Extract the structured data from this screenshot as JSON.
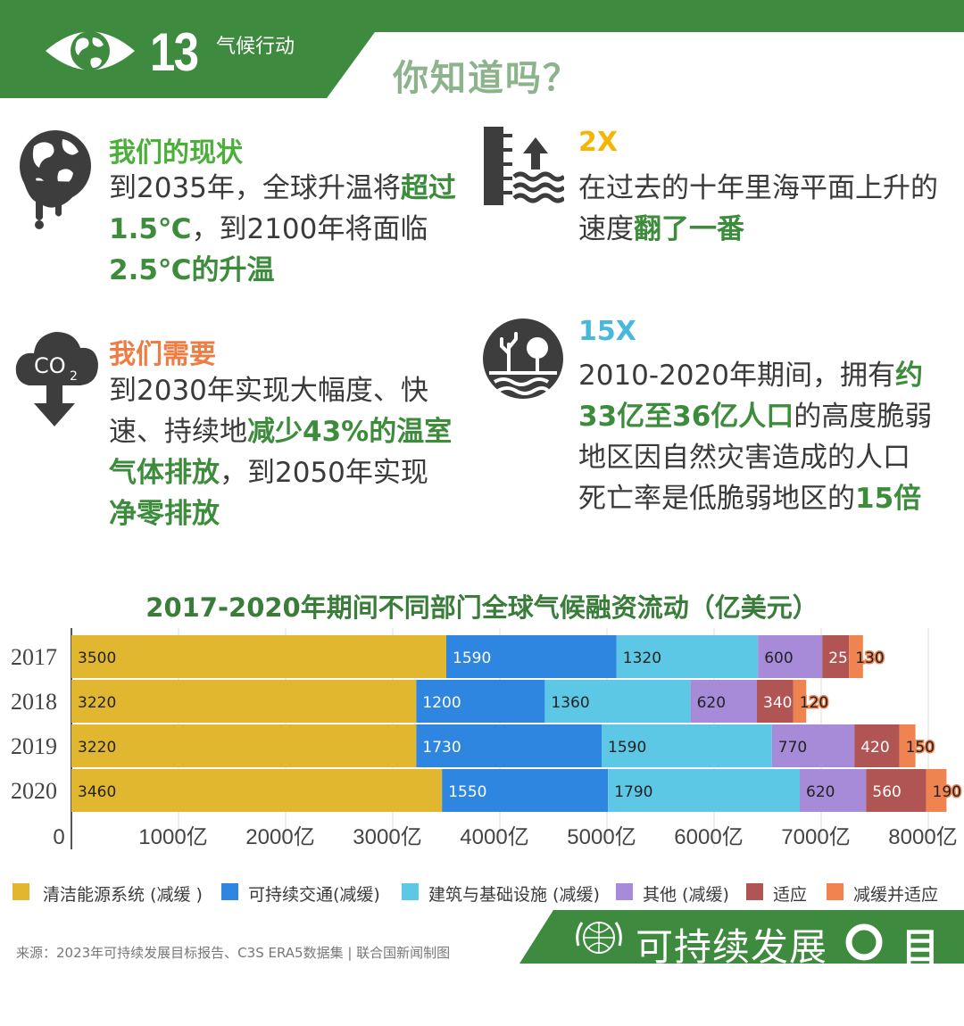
{
  "header": {
    "goal_number": "13",
    "goal_name": "气候行动",
    "question": "你知道吗？"
  },
  "facts": [
    {
      "heading": "我们的现状",
      "heading_color": "#4caf3a",
      "icon": "melting-globe-icon",
      "lines": [
        [
          {
            "t": "到2035年，全球升温将"
          },
          {
            "t": "超过",
            "h": 1
          }
        ],
        [
          {
            "t": "1.5℃",
            "h": 1
          },
          {
            "t": "，到2100年将面临"
          }
        ],
        [
          {
            "t": "2.5℃的升温",
            "h": 1
          }
        ]
      ]
    },
    {
      "heading": "2X",
      "heading_color": "#f2b705",
      "icon": "sea-level-rise-icon",
      "lines": [
        [
          {
            "t": "在过去的十年里海平面上升的"
          }
        ],
        [
          {
            "t": "速度"
          },
          {
            "t": "翻了一番",
            "h": 1
          }
        ]
      ]
    },
    {
      "heading": "我们需要",
      "heading_color": "#ee7d45",
      "icon": "co2-cloud-icon",
      "lines": [
        [
          {
            "t": "到2030年实现大幅度、快"
          }
        ],
        [
          {
            "t": "速、持续地"
          },
          {
            "t": "减少43%的温室",
            "h": 1
          }
        ],
        [
          {
            "t": "气体排放",
            "h": 1
          },
          {
            "t": "，到2050年实现"
          }
        ],
        [
          {
            "t": "净零排放",
            "h": 1
          }
        ]
      ]
    },
    {
      "heading": "15X",
      "heading_color": "#4ab8dc",
      "icon": "disaster-tree-icon",
      "lines": [
        [
          {
            "t": "2010-2020年期间，拥有"
          },
          {
            "t": "约",
            "h": 1
          }
        ],
        [
          {
            "t": "33亿至36亿人口",
            "h": 1
          },
          {
            "t": "的高度脆弱"
          }
        ],
        [
          {
            "t": "地区因自然灾害造成的人口"
          }
        ],
        [
          {
            "t": "死亡率是低脆弱地区的"
          },
          {
            "t": "15倍",
            "h": 1
          }
        ]
      ]
    }
  ],
  "chart_data": {
    "type": "bar",
    "orientation": "horizontal",
    "stacked": true,
    "title": "2017-2020年期间不同部门全球气候融资流动（亿美元）",
    "categories": [
      "2017",
      "2018",
      "2019",
      "2020"
    ],
    "series": [
      {
        "name": "清洁能源系统 (减缓 )",
        "color": "#e2b730",
        "label_color": "#222222",
        "values": [
          3500,
          3220,
          3220,
          3460
        ]
      },
      {
        "name": "可持续交通(减缓)",
        "color": "#2e86e0",
        "label_color": "#ffffff",
        "values": [
          1590,
          1200,
          1730,
          1550
        ]
      },
      {
        "name": "建筑与基础设施 (减缓)",
        "color": "#5dc8e6",
        "label_color": "#222222",
        "values": [
          1320,
          1360,
          1590,
          1790
        ]
      },
      {
        "name": "其他 (减缓)",
        "color": "#a78ad8",
        "label_color": "#222222",
        "values": [
          600,
          620,
          770,
          620
        ]
      },
      {
        "name": "适应",
        "color": "#b15454",
        "label_color": "#ffffff",
        "values": [
          250,
          340,
          420,
          560
        ]
      },
      {
        "name": "减缓并适应",
        "color": "#ef8450",
        "label_color": "#222222",
        "values": [
          130,
          120,
          150,
          190
        ]
      }
    ],
    "x_ticks": [
      {
        "value": 0,
        "label": "0"
      },
      {
        "value": 1000,
        "label": "1000亿"
      },
      {
        "value": 2000,
        "label": "2000亿"
      },
      {
        "value": 3000,
        "label": "3000亿"
      },
      {
        "value": 4000,
        "label": "4000亿"
      },
      {
        "value": 5000,
        "label": "5000亿"
      },
      {
        "value": 6000,
        "label": "6000亿"
      },
      {
        "value": 7000,
        "label": "7000亿"
      },
      {
        "value": 8000,
        "label": "8000亿"
      }
    ],
    "xlim": [
      0,
      8200
    ],
    "grid": "vertical",
    "legend": "bottom"
  },
  "footer": {
    "source": "来源：2023年可持续发展目标报告、C3S ERA5数据集  |  联合国新闻制图",
    "sdg_label": "可持续发展",
    "sdg_label2": "目标"
  },
  "colors": {
    "un_green": "#3e8a3e",
    "highlight_green": "#3c8c3c",
    "icon_gray": "#3d3d3d"
  }
}
